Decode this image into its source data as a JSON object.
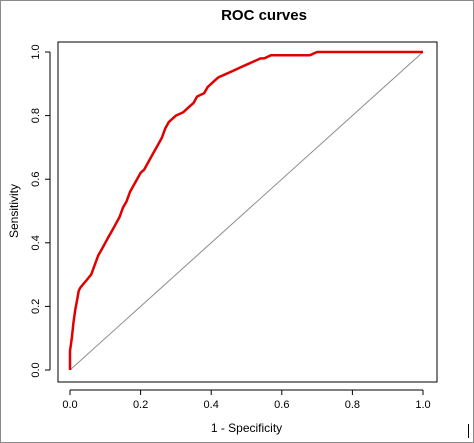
{
  "chart_data": {
    "type": "line",
    "title": "ROC curves",
    "xlabel": "1 - Specificity",
    "ylabel": "Sensitivity",
    "xlim": [
      0,
      1
    ],
    "ylim": [
      0,
      1
    ],
    "x_ticks": [
      "0.0",
      "0.2",
      "0.4",
      "0.6",
      "0.8",
      "1.0"
    ],
    "y_ticks": [
      "0.0",
      "0.2",
      "0.4",
      "0.6",
      "0.8",
      "1.0"
    ],
    "grid": false,
    "legend": "none",
    "series": [
      {
        "color": "#e00000",
        "x": [
          0.0,
          0.0,
          0.005,
          0.01,
          0.015,
          0.02,
          0.025,
          0.03,
          0.045,
          0.06,
          0.07,
          0.08,
          0.09,
          0.1,
          0.11,
          0.12,
          0.13,
          0.14,
          0.15,
          0.16,
          0.17,
          0.18,
          0.19,
          0.2,
          0.21,
          0.22,
          0.23,
          0.24,
          0.25,
          0.26,
          0.27,
          0.28,
          0.29,
          0.3,
          0.32,
          0.34,
          0.35,
          0.36,
          0.38,
          0.39,
          0.4,
          0.41,
          0.42,
          0.44,
          0.46,
          0.48,
          0.5,
          0.52,
          0.54,
          0.55,
          0.57,
          0.6,
          0.62,
          0.65,
          0.68,
          0.7,
          0.72,
          0.75,
          0.8,
          0.85,
          0.9,
          0.95,
          1.0
        ],
        "y": [
          0.0,
          0.06,
          0.1,
          0.15,
          0.19,
          0.22,
          0.25,
          0.26,
          0.28,
          0.3,
          0.33,
          0.36,
          0.38,
          0.4,
          0.42,
          0.44,
          0.46,
          0.48,
          0.51,
          0.53,
          0.56,
          0.58,
          0.6,
          0.62,
          0.63,
          0.65,
          0.67,
          0.69,
          0.71,
          0.73,
          0.76,
          0.78,
          0.79,
          0.8,
          0.81,
          0.83,
          0.84,
          0.86,
          0.87,
          0.89,
          0.9,
          0.91,
          0.92,
          0.93,
          0.94,
          0.95,
          0.96,
          0.97,
          0.98,
          0.98,
          0.99,
          0.99,
          0.99,
          0.99,
          0.99,
          1.0,
          1.0,
          1.0,
          1.0,
          1.0,
          1.0,
          1.0,
          1.0
        ]
      },
      {
        "color": "#8c8c8c",
        "x": [
          0,
          1
        ],
        "y": [
          0,
          1
        ]
      }
    ]
  }
}
